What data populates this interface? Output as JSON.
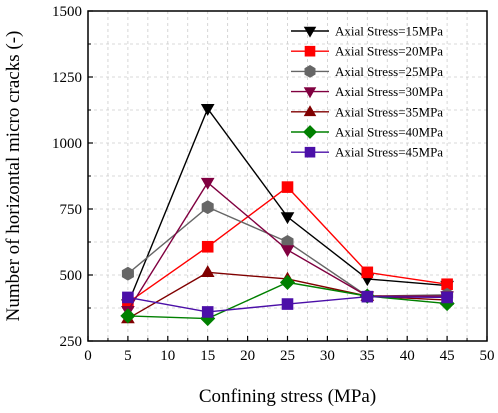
{
  "chart_data": {
    "type": "line",
    "xlabel": "Confining stress (MPa)",
    "ylabel": "Number of horizontal micro cracks (-)",
    "xlim": [
      0,
      50
    ],
    "ylim": [
      250,
      1500
    ],
    "xticks": [
      0,
      5,
      10,
      15,
      20,
      25,
      30,
      35,
      40,
      45,
      50
    ],
    "yticks": [
      250,
      500,
      750,
      1000,
      1250,
      1500
    ],
    "grid": true,
    "legend_position": "top-right",
    "x": [
      5,
      15,
      25,
      35,
      45
    ],
    "series": [
      {
        "name": "Axial Stress=15MPa",
        "color": "#000000",
        "marker": "triangle-down",
        "values": [
          390,
          1130,
          720,
          485,
          460
        ]
      },
      {
        "name": "Axial Stress=20MPa",
        "color": "#ff0000",
        "marker": "square",
        "values": [
          395,
          607,
          833,
          510,
          465
        ]
      },
      {
        "name": "Axial Stress=25MPa",
        "color": "#666666",
        "marker": "hexagon",
        "values": [
          505,
          757,
          625,
          420,
          425
        ]
      },
      {
        "name": "Axial Stress=30MPa",
        "color": "#800040",
        "marker": "triangle-down",
        "values": [
          365,
          850,
          595,
          420,
          420
        ]
      },
      {
        "name": "Axial Stress=35MPa",
        "color": "#800000",
        "marker": "triangle-up",
        "values": [
          335,
          510,
          485,
          420,
          405
        ]
      },
      {
        "name": "Axial Stress=40MPa",
        "color": "#008000",
        "marker": "diamond",
        "values": [
          345,
          335,
          472,
          420,
          392
        ]
      },
      {
        "name": "Axial Stress=45MPa",
        "color": "#4b0fa8",
        "marker": "square",
        "values": [
          415,
          360,
          390,
          418,
          415
        ]
      }
    ]
  }
}
